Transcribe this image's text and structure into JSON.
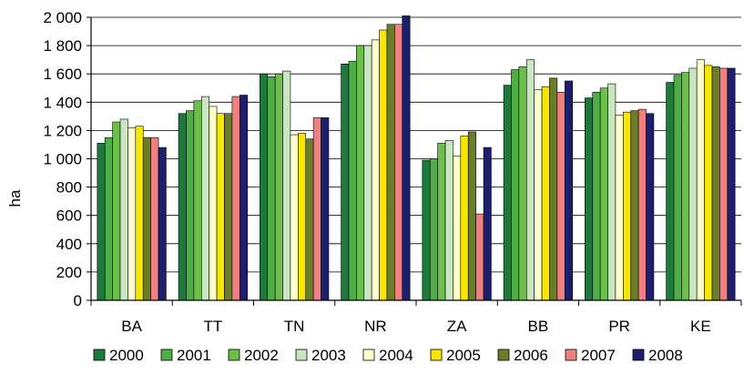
{
  "chart_data": {
    "type": "bar",
    "title": "",
    "xlabel": "",
    "ylabel": "ha",
    "ylim": [
      0,
      2000
    ],
    "yticks": [
      0,
      200,
      400,
      600,
      800,
      1000,
      1200,
      1400,
      1600,
      1800,
      2000
    ],
    "ytick_labels": [
      "0",
      "200",
      "400",
      "600",
      "800",
      "1 000",
      "1 200",
      "1 400",
      "1 600",
      "1 800",
      "2 000"
    ],
    "grid": true,
    "legend_position": "bottom",
    "categories": [
      "BA",
      "TT",
      "TN",
      "NR",
      "ZA",
      "BB",
      "PR",
      "KE"
    ],
    "series": [
      {
        "name": "2000",
        "color": "#1e7a3c",
        "values": [
          1110,
          1320,
          1600,
          1670,
          990,
          1520,
          1430,
          1540
        ]
      },
      {
        "name": "2001",
        "color": "#4fae46",
        "values": [
          1150,
          1340,
          1580,
          1690,
          1000,
          1630,
          1470,
          1590
        ]
      },
      {
        "name": "2002",
        "color": "#6cc04a",
        "values": [
          1260,
          1410,
          1600,
          1800,
          1110,
          1650,
          1500,
          1610
        ]
      },
      {
        "name": "2003",
        "color": "#c8e6c0",
        "values": [
          1280,
          1440,
          1620,
          1800,
          1130,
          1700,
          1530,
          1640
        ]
      },
      {
        "name": "2004",
        "color": "#ffffcc",
        "values": [
          1220,
          1370,
          1170,
          1840,
          1020,
          1490,
          1310,
          1700
        ]
      },
      {
        "name": "2005",
        "color": "#f7e600",
        "values": [
          1230,
          1320,
          1180,
          1910,
          1160,
          1510,
          1330,
          1660
        ]
      },
      {
        "name": "2006",
        "color": "#6b7d2a",
        "values": [
          1150,
          1320,
          1140,
          1950,
          1190,
          1570,
          1340,
          1650
        ]
      },
      {
        "name": "2007",
        "color": "#f08080",
        "values": [
          1150,
          1440,
          1290,
          1950,
          610,
          1470,
          1350,
          1640
        ]
      },
      {
        "name": "2008",
        "color": "#1e1e6e",
        "values": [
          1080,
          1450,
          1290,
          2010,
          1080,
          1550,
          1320,
          1640
        ]
      }
    ]
  }
}
